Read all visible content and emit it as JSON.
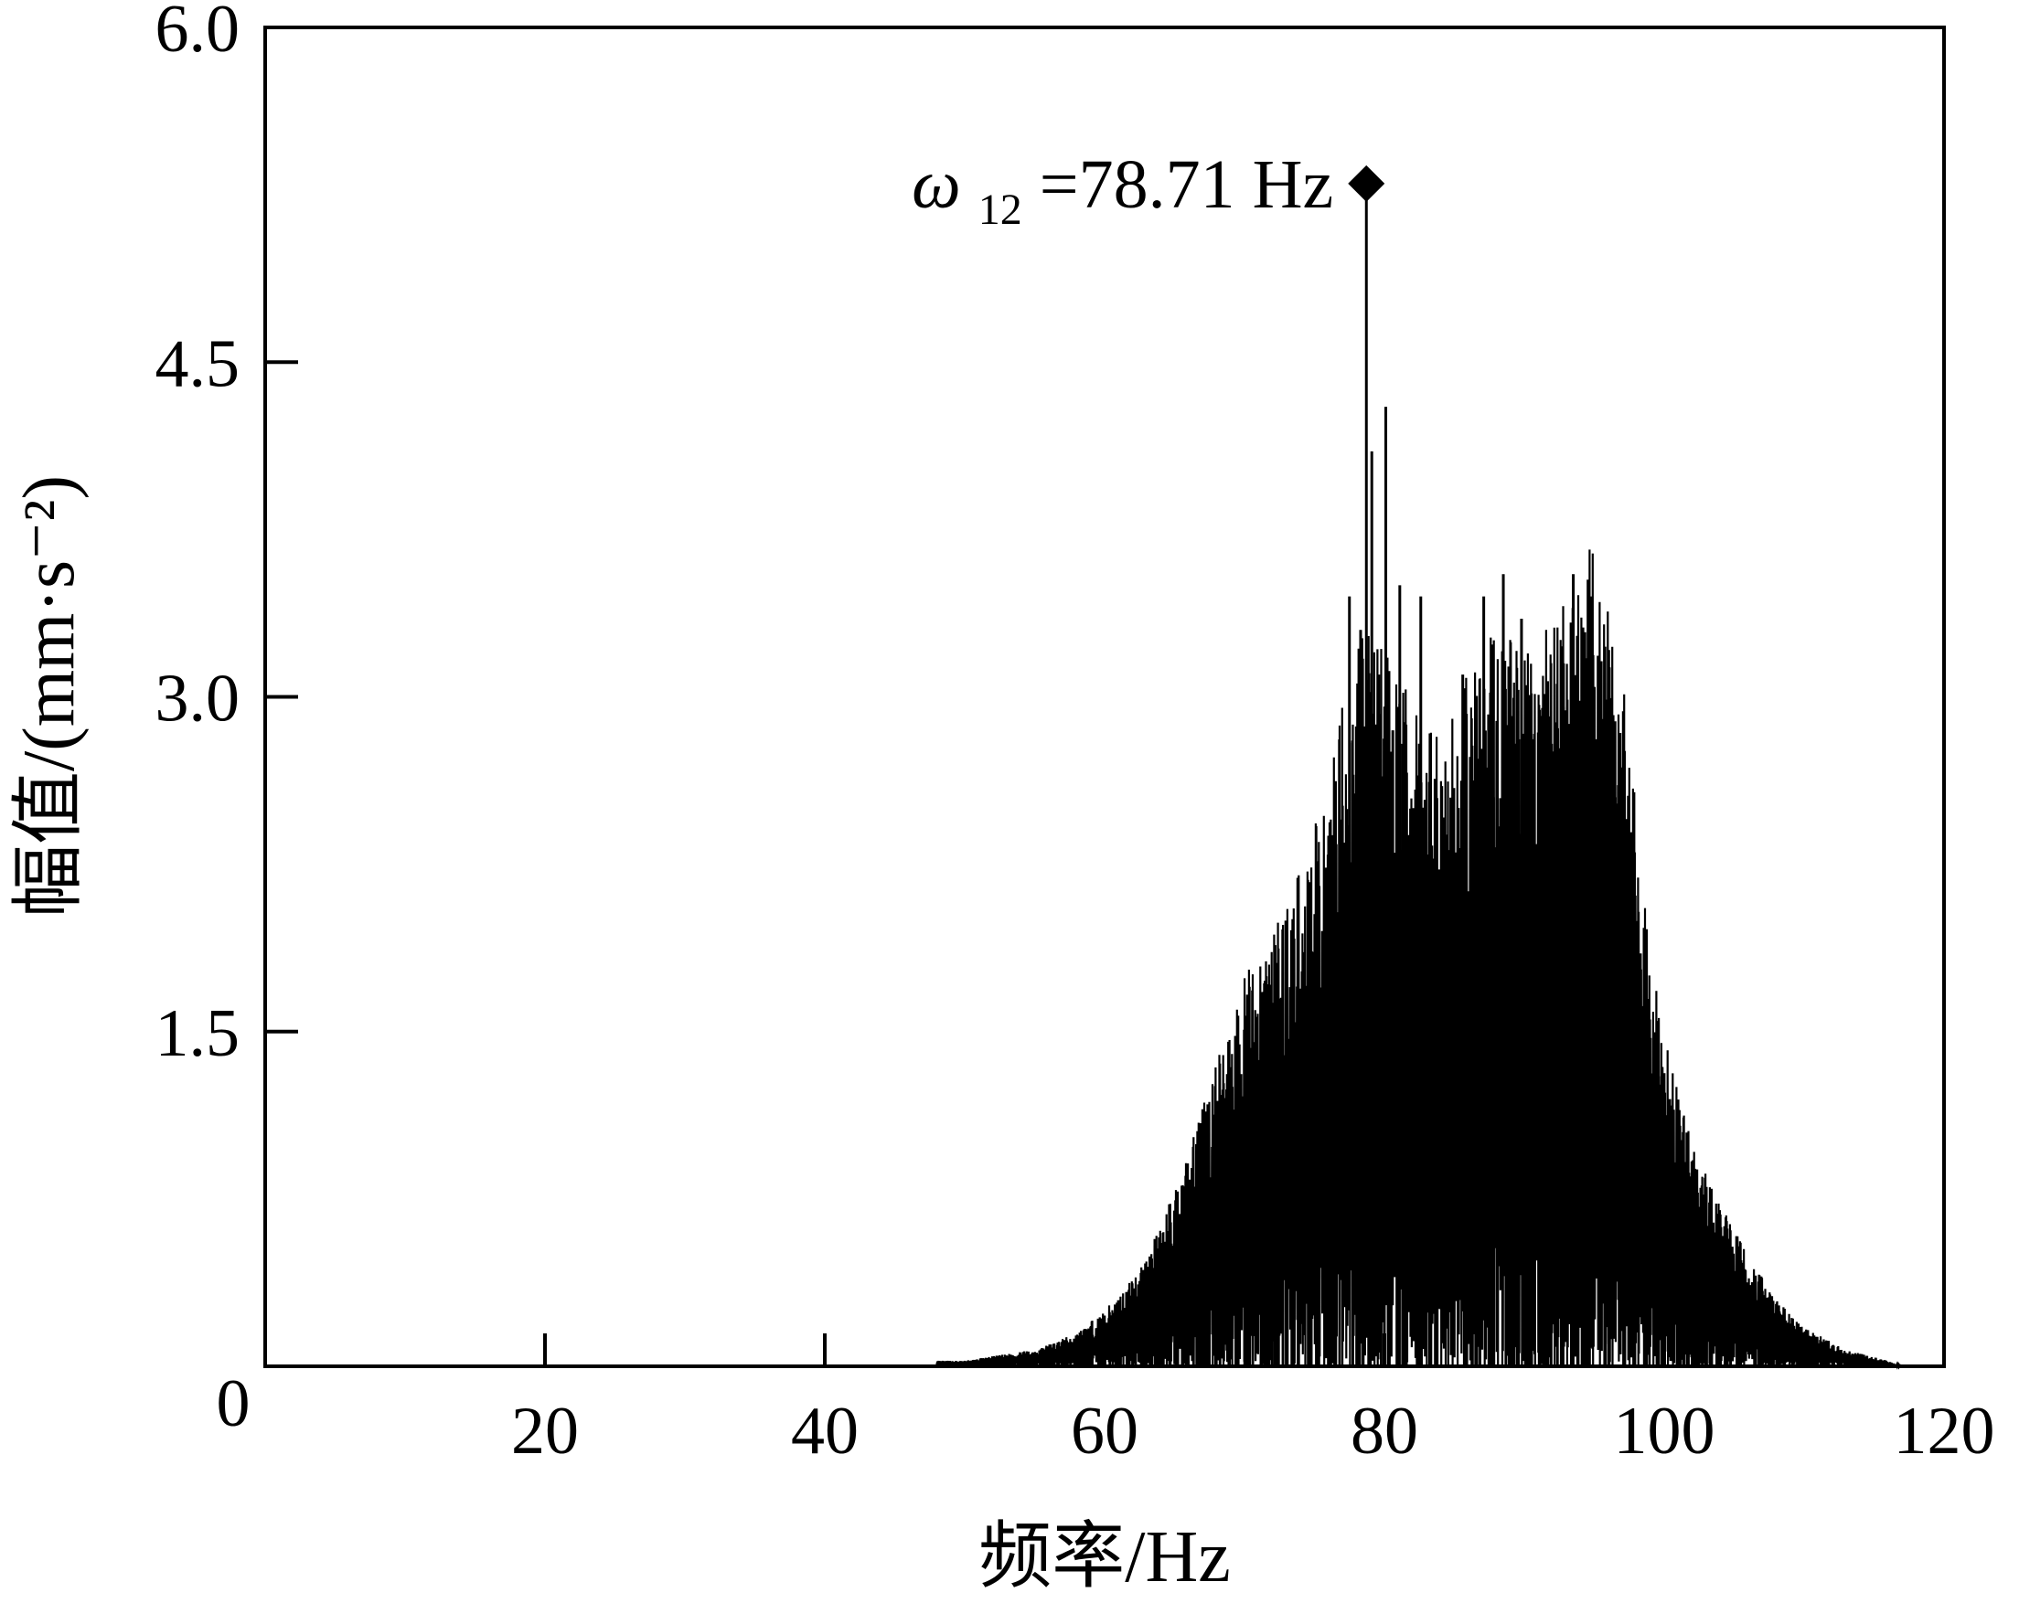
{
  "chart_data": {
    "type": "line",
    "xlabel": "频率/Hz",
    "ylabel": "幅值/(mm·s⁻²)",
    "xlim": [
      0,
      120
    ],
    "ylim": [
      0,
      6.0
    ],
    "x_ticks": [
      20,
      40,
      60,
      80,
      100,
      120
    ],
    "x_tick_labels": [
      "20",
      "40",
      "60",
      "80",
      "100",
      "120"
    ],
    "y_ticks": [
      1.5,
      3.0,
      4.5,
      6.0
    ],
    "y_tick_labels": [
      "1.5",
      "3.0",
      "4.5",
      "6.0"
    ],
    "origin_label": "0",
    "grid": false,
    "legend": "none",
    "line_color": "#000000",
    "annotation": {
      "symbol": "ω",
      "subscript": "12",
      "text": "=78.71 Hz",
      "x": 78.71,
      "y": 5.3,
      "marker": "diamond"
    },
    "series": [
      {
        "envelope": [
          [
            50,
            0.01
          ],
          [
            55,
            0.03
          ],
          [
            58,
            0.06
          ],
          [
            60,
            0.1
          ],
          [
            62,
            0.16
          ],
          [
            64,
            0.25
          ],
          [
            66,
            0.4
          ],
          [
            68,
            0.55
          ],
          [
            70,
            0.7
          ],
          [
            72,
            0.8
          ],
          [
            74,
            0.9
          ],
          [
            76,
            1.05
          ],
          [
            77,
            1.2
          ],
          [
            78,
            1.3
          ],
          [
            79,
            1.35
          ],
          [
            80,
            1.3
          ],
          [
            82,
            1.2
          ],
          [
            84,
            1.15
          ],
          [
            86,
            1.25
          ],
          [
            88,
            1.35
          ],
          [
            90,
            1.3
          ],
          [
            92,
            1.35
          ],
          [
            94,
            1.45
          ],
          [
            95,
            1.5
          ],
          [
            96,
            1.45
          ],
          [
            97,
            1.3
          ],
          [
            98,
            1.0
          ],
          [
            99,
            0.75
          ],
          [
            100,
            0.6
          ],
          [
            101,
            0.5
          ],
          [
            102,
            0.4
          ],
          [
            104,
            0.3
          ],
          [
            106,
            0.2
          ],
          [
            108,
            0.12
          ],
          [
            110,
            0.07
          ],
          [
            113,
            0.03
          ],
          [
            116,
            0.01
          ],
          [
            117,
            0.0
          ]
        ],
        "spikes": [
          [
            64.0,
            0.4
          ],
          [
            65.5,
            0.5
          ],
          [
            66.5,
            0.6
          ],
          [
            67.6,
            0.75
          ],
          [
            68.3,
            0.9
          ],
          [
            69.5,
            0.95
          ],
          [
            70.2,
            1.2
          ],
          [
            71.0,
            1.1
          ],
          [
            72.0,
            1.35
          ],
          [
            73.2,
            1.25
          ],
          [
            74.0,
            1.5
          ],
          [
            74.8,
            1.4
          ],
          [
            75.7,
            1.75
          ],
          [
            76.4,
            1.6
          ],
          [
            76.9,
            2.45
          ],
          [
            77.5,
            3.45
          ],
          [
            77.9,
            2.2
          ],
          [
            78.3,
            3.3
          ],
          [
            78.71,
            5.3
          ],
          [
            79.1,
            4.1
          ],
          [
            79.6,
            3.1
          ],
          [
            80.1,
            4.3
          ],
          [
            80.6,
            2.85
          ],
          [
            81.1,
            3.5
          ],
          [
            81.8,
            2.2
          ],
          [
            82.6,
            3.45
          ],
          [
            83.3,
            2.5
          ],
          [
            84.1,
            2.6
          ],
          [
            84.8,
            2.0
          ],
          [
            85.6,
            3.1
          ],
          [
            86.4,
            2.2
          ],
          [
            87.1,
            3.45
          ],
          [
            87.8,
            2.55
          ],
          [
            88.5,
            3.55
          ],
          [
            89.1,
            2.6
          ],
          [
            89.8,
            3.35
          ],
          [
            90.6,
            2.5
          ],
          [
            91.3,
            2.95
          ],
          [
            92.0,
            2.6
          ],
          [
            92.8,
            3.15
          ],
          [
            93.5,
            3.55
          ],
          [
            94.2,
            3.0
          ],
          [
            94.8,
            3.45
          ],
          [
            95.3,
            3.05
          ],
          [
            95.9,
            2.7
          ],
          [
            96.5,
            2.55
          ],
          [
            97.1,
            2.2
          ],
          [
            97.7,
            2.2
          ],
          [
            98.3,
            1.85
          ],
          [
            98.9,
            1.55
          ],
          [
            99.6,
            1.3
          ],
          [
            100.2,
            0.95
          ],
          [
            100.9,
            0.9
          ],
          [
            101.6,
            0.75
          ],
          [
            102.4,
            0.7
          ],
          [
            103.2,
            0.55
          ],
          [
            104.0,
            0.5
          ],
          [
            104.9,
            0.45
          ],
          [
            105.8,
            0.35
          ],
          [
            106.9,
            0.25
          ],
          [
            108.0,
            0.2
          ],
          [
            109.5,
            0.14
          ],
          [
            111.0,
            0.1
          ],
          [
            112.5,
            0.06
          ],
          [
            114.0,
            0.04
          ]
        ],
        "dips": [
          [
            66.0,
            0.0
          ],
          [
            68.0,
            0.0
          ],
          [
            70.0,
            0.0
          ],
          [
            72.0,
            0.0
          ],
          [
            74.0,
            0.1
          ],
          [
            76.5,
            0.05
          ],
          [
            78.5,
            0.0
          ],
          [
            80.0,
            0.1
          ],
          [
            83.0,
            0.15
          ],
          [
            86.0,
            0.1
          ],
          [
            89.0,
            0.15
          ],
          [
            91.5,
            0.2
          ],
          [
            94.5,
            0.0
          ],
          [
            96.0,
            0.1
          ],
          [
            98.5,
            0.15
          ],
          [
            100.5,
            0.05
          ],
          [
            102.5,
            0.0
          ]
        ]
      }
    ]
  }
}
